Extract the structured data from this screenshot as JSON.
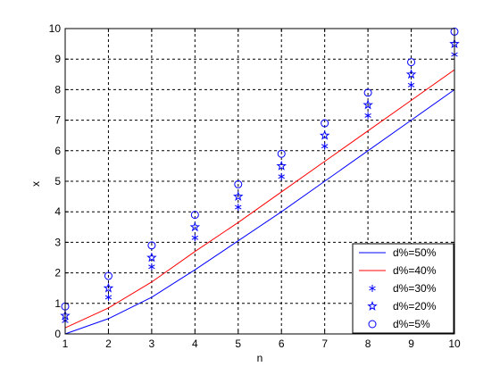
{
  "chart_data": {
    "type": "line",
    "xlabel": "n",
    "ylabel": "x",
    "xlim": [
      1,
      10
    ],
    "ylim": [
      0,
      10
    ],
    "xticks": [
      "1",
      "2",
      "3",
      "4",
      "5",
      "6",
      "7",
      "8",
      "9",
      "10"
    ],
    "yticks": [
      "0",
      "1",
      "2",
      "3",
      "4",
      "5",
      "6",
      "7",
      "8",
      "9",
      "10"
    ],
    "grid": true,
    "legend_position": "bottom-right",
    "x": [
      1,
      2,
      3,
      4,
      5,
      6,
      7,
      8,
      9,
      10
    ],
    "series": [
      {
        "name": "d%=50%",
        "style": "line",
        "color": "#0000ff",
        "values": [
          0.0,
          0.5,
          1.2,
          2.1,
          3.05,
          4.0,
          5.0,
          6.0,
          7.0,
          8.0
        ]
      },
      {
        "name": "d%=40%",
        "style": "line",
        "color": "#ff0000",
        "values": [
          0.2,
          0.85,
          1.7,
          2.7,
          3.65,
          4.65,
          5.65,
          6.65,
          7.65,
          8.65
        ]
      },
      {
        "name": "d%=30%",
        "style": "asterisk",
        "color": "#0000ff",
        "values": [
          0.43,
          1.2,
          2.2,
          3.15,
          4.15,
          5.15,
          6.15,
          7.15,
          8.15,
          9.15
        ]
      },
      {
        "name": "d%=20%",
        "style": "star",
        "color": "#0000ff",
        "values": [
          0.6,
          1.5,
          2.5,
          3.5,
          4.5,
          5.5,
          6.5,
          7.5,
          8.5,
          9.5
        ]
      },
      {
        "name": "d%=5%",
        "style": "circle",
        "color": "#0000ff",
        "values": [
          0.9,
          1.9,
          2.9,
          3.9,
          4.9,
          5.9,
          6.9,
          7.9,
          8.9,
          9.9
        ]
      }
    ]
  }
}
